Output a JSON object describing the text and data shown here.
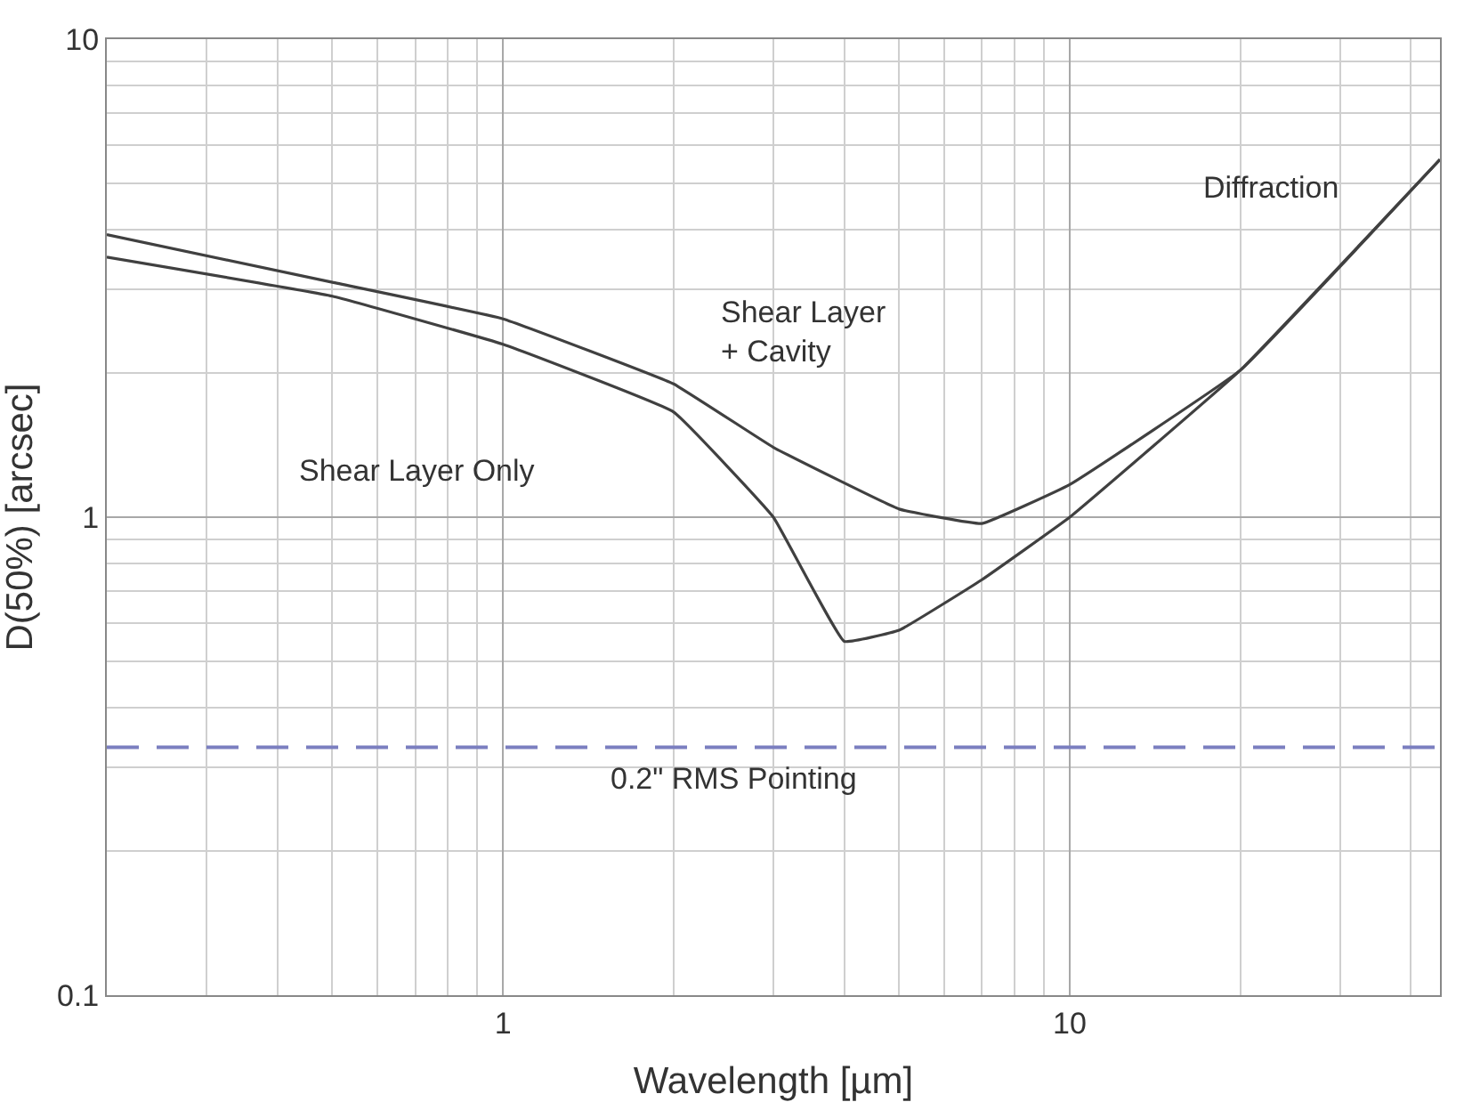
{
  "chart_data": {
    "type": "line",
    "xlabel": "Wavelength [µm]",
    "ylabel": "D(50%) [arcsec]",
    "log": "xy",
    "xlim": [
      0.2,
      45
    ],
    "ylim": [
      0.1,
      10
    ],
    "xticks": [
      1,
      10
    ],
    "yticks": [
      0.1,
      1,
      10
    ],
    "grid": true,
    "marker": "none",
    "line_style": "solid",
    "series": [
      {
        "color": "#404040",
        "x": [
          0.2,
          0.5,
          1,
          2,
          3,
          5,
          7,
          10,
          20,
          45
        ],
        "values": [
          3.9,
          3.1,
          2.6,
          1.9,
          1.4,
          1.04,
          0.97,
          1.17,
          2.03,
          5.6
        ]
      },
      {
        "color": "#404040",
        "x": [
          0.2,
          0.5,
          1,
          2,
          3,
          4,
          5,
          7,
          10,
          20,
          45
        ],
        "values": [
          3.5,
          2.9,
          2.3,
          1.66,
          1.0,
          0.55,
          0.58,
          0.74,
          1.0,
          2.03,
          5.6
        ]
      }
    ],
    "ref_lines": [
      {
        "axis": "y",
        "value": 0.33,
        "label": "0.2\" RMS Pointing",
        "color": "#7b7fc0",
        "line_style": "dashed"
      }
    ],
    "annotations": [
      "Diffraction",
      "Shear Layer\n+ Cavity",
      "Shear Layer Only"
    ]
  }
}
